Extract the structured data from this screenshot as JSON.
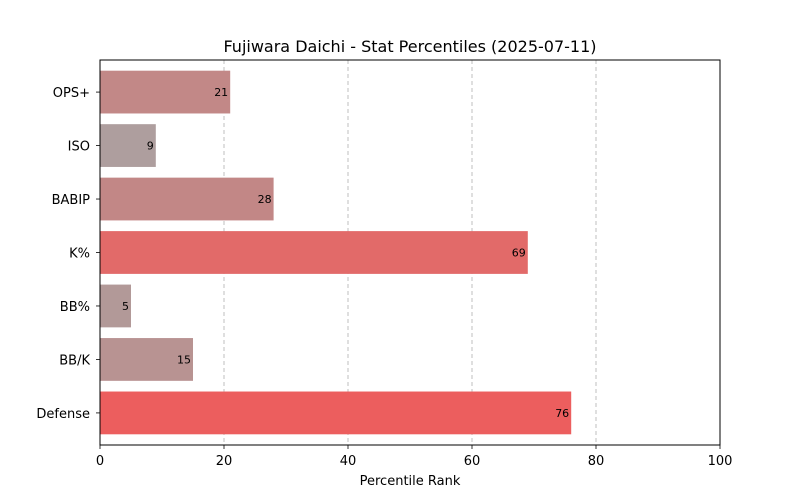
{
  "chart_data": {
    "type": "bar",
    "orientation": "horizontal",
    "title": "Fujiwara Daichi - Stat Percentiles (2025-07-11)",
    "xlabel": "Percentile Rank",
    "ylabel": "",
    "xlim": [
      0,
      100
    ],
    "xticks": [
      0,
      20,
      40,
      60,
      80,
      100
    ],
    "grid": "x-axis dashed",
    "categories": [
      "OPS+",
      "ISO",
      "BABIP",
      "K%",
      "BB%",
      "BB/K",
      "Defense"
    ],
    "values": [
      21,
      9,
      28,
      69,
      5,
      15,
      76
    ],
    "colors": [
      "#c28887",
      "#ae9e9e",
      "#c28786",
      "#e26a69",
      "#b29998",
      "#b89392",
      "#ec5e5e"
    ]
  }
}
